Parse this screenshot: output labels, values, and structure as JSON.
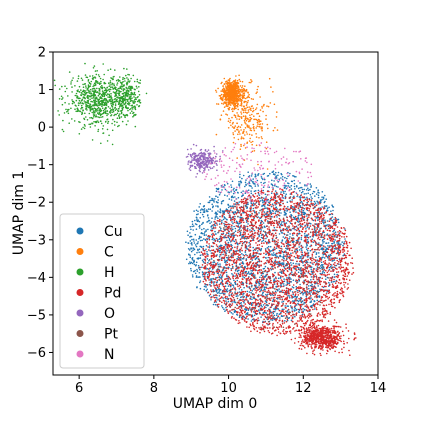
{
  "chart_data": {
    "type": "scatter",
    "title": "",
    "xlabel": "UMAP dim 0",
    "ylabel": "UMAP dim 1",
    "xlim": [
      5.3,
      14.0
    ],
    "ylim": [
      -6.6,
      2.0
    ],
    "xticks": [
      6,
      8,
      10,
      12,
      14
    ],
    "yticks": [
      2,
      1,
      0,
      -1,
      -2,
      -3,
      -4,
      -5,
      -6
    ],
    "xtick_labels": [
      "6",
      "8",
      "10",
      "12",
      "14"
    ],
    "ytick_labels": [
      "2",
      "1",
      "0",
      "−1",
      "−2",
      "−3",
      "−4",
      "−5",
      "−6"
    ],
    "grid": false,
    "legend_position": "lower-left",
    "series": [
      {
        "name": "Cu",
        "color": "#1f77b4",
        "clusters": [
          {
            "center": [
              11.0,
              -3.2
            ],
            "radius": [
              2.1,
              2.0
            ],
            "density": "very high"
          }
        ]
      },
      {
        "name": "C",
        "color": "#ff7f0e",
        "clusters": [
          {
            "center": [
              10.1,
              0.9
            ],
            "radius": [
              0.25,
              0.3
            ],
            "density": "high"
          },
          {
            "center": [
              10.5,
              0.2
            ],
            "radius": [
              0.6,
              0.7
            ],
            "density": "medium"
          }
        ]
      },
      {
        "name": "H",
        "color": "#2ca02c",
        "clusters": [
          {
            "center": [
              6.5,
              0.7
            ],
            "radius": [
              0.7,
              0.6
            ],
            "density": "high"
          },
          {
            "center": [
              7.3,
              0.8
            ],
            "radius": [
              0.3,
              0.5
            ],
            "density": "medium"
          }
        ]
      },
      {
        "name": "Pd",
        "color": "#d62728",
        "clusters": [
          {
            "center": [
              11.3,
              -3.6
            ],
            "radius": [
              2.0,
              1.9
            ],
            "density": "very high"
          },
          {
            "center": [
              12.5,
              -5.6
            ],
            "radius": [
              0.5,
              0.3
            ],
            "density": "high"
          }
        ]
      },
      {
        "name": "O",
        "color": "#9467bd",
        "clusters": [
          {
            "center": [
              9.3,
              -0.9
            ],
            "radius": [
              0.35,
              0.25
            ],
            "density": "medium"
          }
        ]
      },
      {
        "name": "Pt",
        "color": "#8c564b",
        "clusters": [
          {
            "center": [
              11.2,
              -3.6
            ],
            "radius": [
              1.8,
              1.8
            ],
            "density": "low"
          }
        ]
      },
      {
        "name": "N",
        "color": "#e377c2",
        "clusters": [
          {
            "center": [
              10.8,
              -1.2
            ],
            "radius": [
              1.5,
              0.8
            ],
            "density": "low"
          }
        ]
      }
    ]
  }
}
